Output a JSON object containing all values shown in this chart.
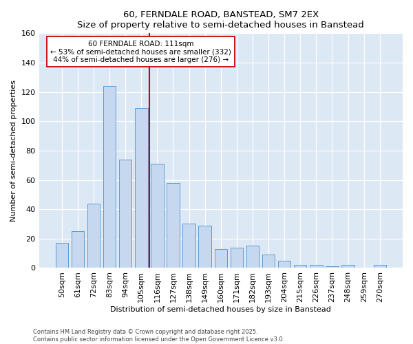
{
  "title1": "60, FERNDALE ROAD, BANSTEAD, SM7 2EX",
  "title2": "Size of property relative to semi-detached houses in Banstead",
  "xlabel": "Distribution of semi-detached houses by size in Banstead",
  "ylabel": "Number of semi-detached properties",
  "categories": [
    "50sqm",
    "61sqm",
    "72sqm",
    "83sqm",
    "94sqm",
    "105sqm",
    "116sqm",
    "127sqm",
    "138sqm",
    "149sqm",
    "160sqm",
    "171sqm",
    "182sqm",
    "193sqm",
    "204sqm",
    "215sqm",
    "226sqm",
    "237sqm",
    "248sqm",
    "259sqm",
    "270sqm"
  ],
  "values": [
    17,
    25,
    44,
    124,
    74,
    109,
    71,
    58,
    30,
    29,
    13,
    14,
    15,
    9,
    5,
    2,
    2,
    1,
    2,
    0,
    2
  ],
  "bar_color": "#c5d8f0",
  "bar_edge_color": "#5b9bd5",
  "vline_x": 5.5,
  "vline_color": "#cc0000",
  "annotation_title": "60 FERNDALE ROAD: 111sqm",
  "annotation_line1": "← 53% of semi-detached houses are smaller (332)",
  "annotation_line2": "44% of semi-detached houses are larger (276) →",
  "annotation_box_color": "#ffffff",
  "annotation_box_edge": "#cc0000",
  "ylim": [
    0,
    160
  ],
  "yticks": [
    0,
    20,
    40,
    60,
    80,
    100,
    120,
    140,
    160
  ],
  "footer1": "Contains HM Land Registry data © Crown copyright and database right 2025.",
  "footer2": "Contains public sector information licensed under the Open Government Licence v3.0.",
  "bg_color": "#dde8f5",
  "fig_bg": "#ffffff"
}
